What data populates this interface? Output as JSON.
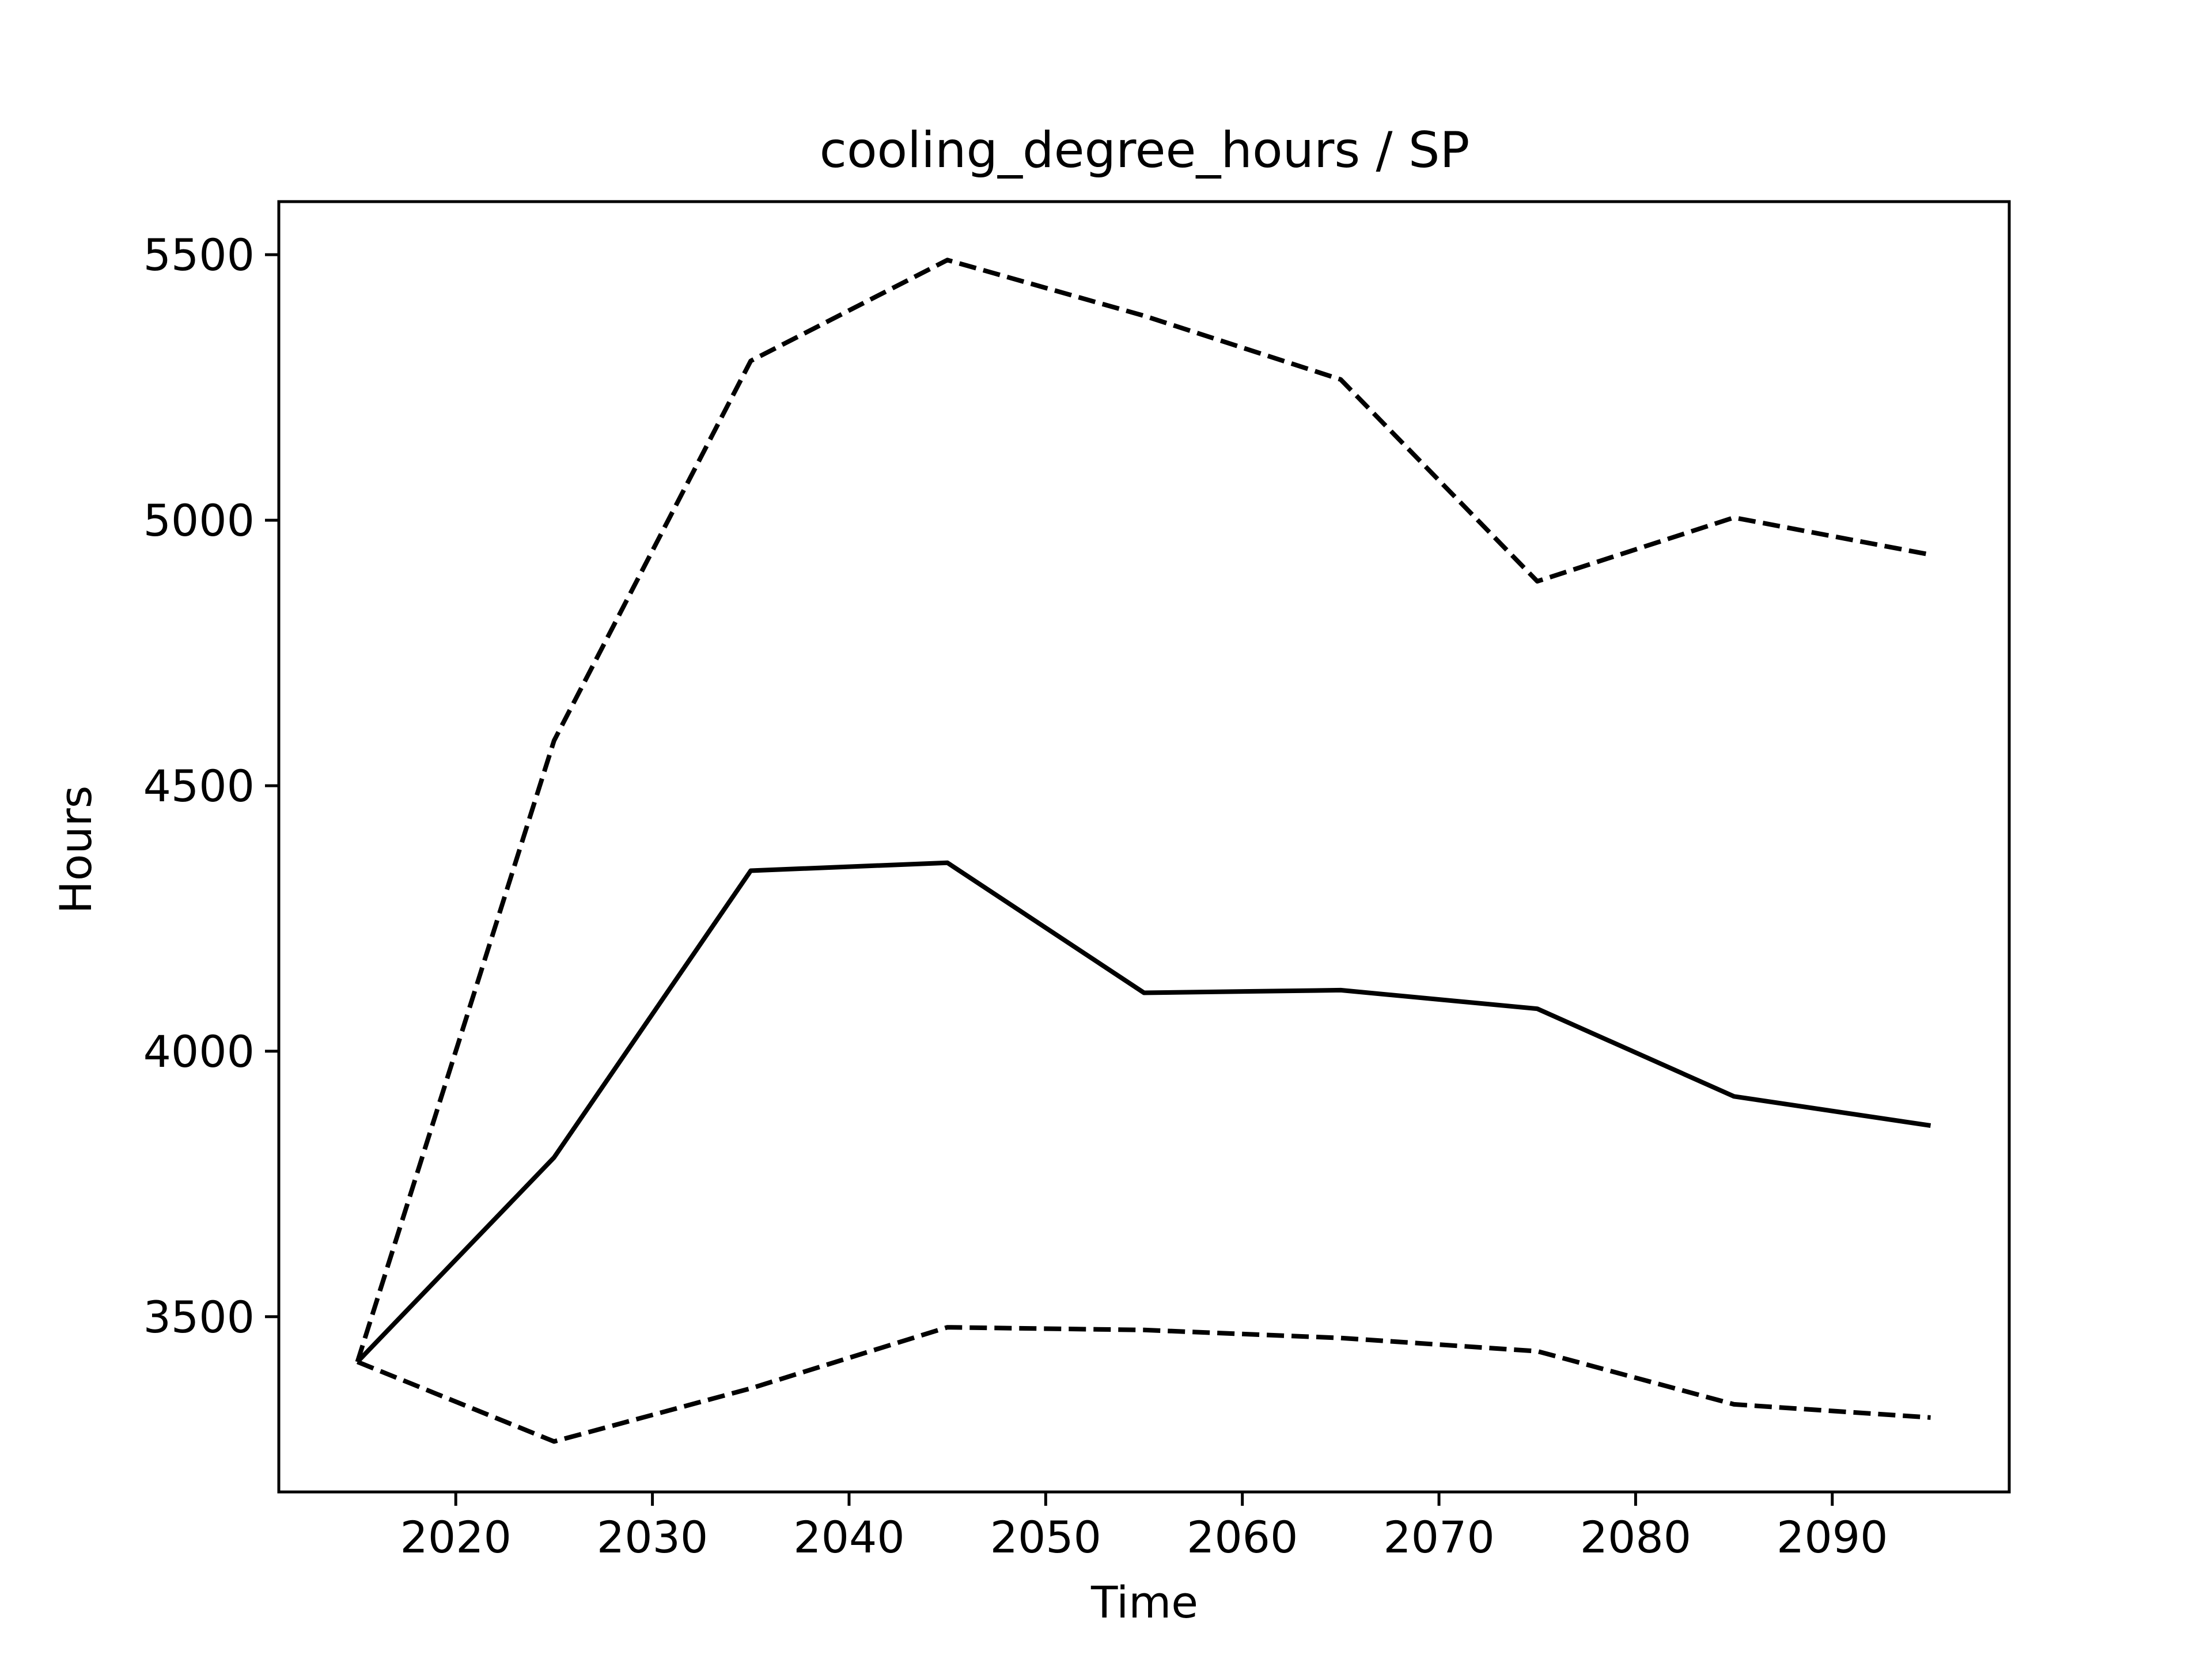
{
  "chart_data": {
    "type": "line",
    "title": "cooling_degree_hours / SP",
    "xlabel": "Time",
    "ylabel": "Hours",
    "x": [
      2015,
      2025,
      2035,
      2045,
      2055,
      2065,
      2075,
      2085,
      2095
    ],
    "series": [
      {
        "style": "dashed",
        "values": [
          3415,
          4585,
          5300,
          5490,
          5385,
          5265,
          4885,
          5005,
          4935
        ]
      },
      {
        "style": "solid",
        "values": [
          3415,
          3800,
          4340,
          4355,
          4110,
          4115,
          4080,
          3915,
          3860
        ]
      },
      {
        "style": "dashed",
        "values": [
          3415,
          3265,
          3365,
          3480,
          3475,
          3460,
          3435,
          3335,
          3310
        ]
      }
    ],
    "xlim": [
      2011,
      2099
    ],
    "ylim": [
      3170,
      5600
    ],
    "xticks": [
      2020,
      2030,
      2040,
      2050,
      2060,
      2070,
      2080,
      2090
    ],
    "yticks": [
      3500,
      4000,
      4500,
      5000,
      5500
    ],
    "grid": false,
    "line_color": "#000000"
  }
}
